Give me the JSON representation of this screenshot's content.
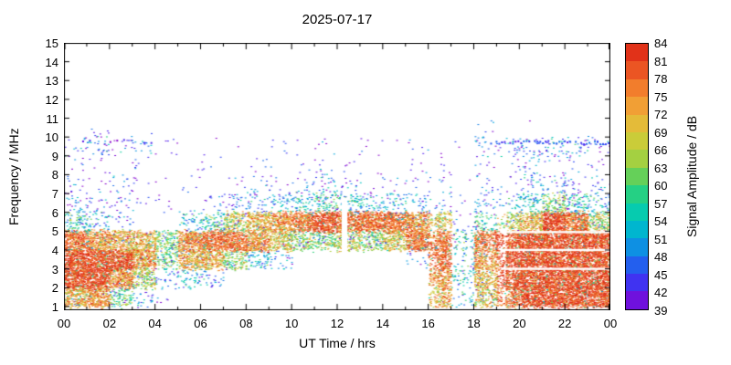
{
  "chart_data": {
    "type": "heatmap",
    "title": "2025-07-17",
    "xlabel": "UT Time / hrs",
    "ylabel": "Frequency / MHz",
    "colorbar_label": "Signal Amplitude / dB",
    "x_range_hours": [
      0,
      24
    ],
    "y_range_mhz": [
      0.8,
      15
    ],
    "color_range_db": [
      39,
      84
    ],
    "x_minor_step": 1,
    "x_tick_hours": [
      0,
      2,
      4,
      6,
      8,
      10,
      12,
      14,
      16,
      18,
      20,
      22,
      24
    ],
    "x_tick_labels": [
      "00",
      "02",
      "04",
      "06",
      "08",
      "10",
      "12",
      "14",
      "16",
      "18",
      "20",
      "22",
      "00"
    ],
    "y_ticks": [
      1,
      2,
      3,
      4,
      5,
      6,
      7,
      8,
      9,
      10,
      11,
      12,
      13,
      14,
      15
    ],
    "colorbar_ticks": [
      39,
      42,
      45,
      48,
      51,
      54,
      57,
      60,
      63,
      66,
      69,
      72,
      75,
      78,
      81,
      84
    ],
    "palette_stops": [
      [
        39,
        "#8800cc"
      ],
      [
        42,
        "#5522ee"
      ],
      [
        45,
        "#2a44f4"
      ],
      [
        48,
        "#1b7ae8"
      ],
      [
        51,
        "#00a6dd"
      ],
      [
        54,
        "#00c6c0"
      ],
      [
        57,
        "#0ccf9e"
      ],
      [
        60,
        "#3ed06a"
      ],
      [
        63,
        "#8ccf48"
      ],
      [
        66,
        "#bcd03a"
      ],
      [
        69,
        "#d8c838"
      ],
      [
        72,
        "#efae3a"
      ],
      [
        75,
        "#f39030"
      ],
      [
        78,
        "#f06a28"
      ],
      [
        81,
        "#e6401e"
      ],
      [
        84,
        "#dc2414"
      ]
    ],
    "grid": {
      "hour_step": 1,
      "freq_step_mhz": 1,
      "freq_start_mhz": 1,
      "rows_low_to_high": [
        [
          72,
          75,
          60,
          48,
          42,
          0,
          0,
          0,
          0,
          0,
          0,
          0,
          0,
          0,
          0,
          0,
          72,
          51,
          69,
          78,
          81,
          81,
          81,
          81
        ],
        [
          81,
          81,
          75,
          66,
          48,
          51,
          48,
          0,
          0,
          0,
          0,
          0,
          0,
          0,
          0,
          0,
          75,
          54,
          72,
          81,
          81,
          81,
          81,
          81
        ],
        [
          81,
          81,
          81,
          75,
          60,
          72,
          72,
          63,
          54,
          48,
          0,
          0,
          0,
          0,
          0,
          45,
          78,
          51,
          75,
          81,
          81,
          81,
          81,
          81
        ],
        [
          78,
          75,
          72,
          72,
          63,
          75,
          78,
          78,
          75,
          69,
          63,
          63,
          66,
          63,
          69,
          78,
          78,
          57,
          78,
          81,
          81,
          81,
          81,
          81
        ],
        [
          57,
          51,
          45,
          0,
          0,
          51,
          57,
          66,
          72,
          75,
          78,
          81,
          78,
          78,
          78,
          75,
          69,
          45,
          57,
          66,
          72,
          81,
          78,
          66
        ],
        [
          48,
          45,
          45,
          42,
          42,
          0,
          45,
          48,
          48,
          51,
          54,
          57,
          54,
          51,
          51,
          48,
          48,
          42,
          48,
          51,
          54,
          63,
          57,
          51
        ],
        [
          45,
          42,
          45,
          42,
          39,
          42,
          0,
          42,
          45,
          42,
          45,
          48,
          45,
          42,
          42,
          42,
          45,
          39,
          45,
          45,
          48,
          48,
          45,
          45
        ],
        [
          42,
          42,
          39,
          42,
          0,
          39,
          42,
          0,
          42,
          39,
          42,
          42,
          42,
          39,
          0,
          42,
          42,
          0,
          42,
          42,
          45,
          42,
          42,
          42
        ],
        [
          45,
          48,
          45,
          45,
          42,
          0,
          39,
          39,
          0,
          42,
          39,
          42,
          39,
          42,
          39,
          42,
          39,
          42,
          48,
          48,
          48,
          48,
          48,
          45
        ],
        [
          0,
          42,
          0,
          39,
          0,
          0,
          0,
          0,
          0,
          0,
          0,
          0,
          0,
          0,
          0,
          0,
          0,
          0,
          42,
          0,
          39,
          0,
          0,
          0
        ],
        [
          0,
          0,
          0,
          0,
          0,
          0,
          0,
          0,
          0,
          0,
          0,
          0,
          0,
          0,
          0,
          0,
          0,
          0,
          0,
          0,
          0,
          0,
          0,
          0
        ],
        [
          0,
          0,
          0,
          0,
          0,
          0,
          0,
          0,
          0,
          0,
          0,
          0,
          0,
          0,
          0,
          0,
          0,
          0,
          0,
          0,
          0,
          0,
          0,
          0
        ],
        [
          0,
          0,
          0,
          0,
          0,
          0,
          0,
          0,
          0,
          0,
          0,
          0,
          0,
          0,
          0,
          0,
          0,
          0,
          0,
          0,
          0,
          0,
          0,
          0
        ],
        [
          0,
          0,
          0,
          0,
          0,
          0,
          0,
          0,
          0,
          0,
          0,
          0,
          0,
          0,
          0,
          0,
          0,
          0,
          0,
          0,
          0,
          0,
          0,
          0
        ],
        [
          0,
          0,
          0,
          0,
          0,
          0,
          0,
          0,
          0,
          0,
          0,
          0,
          0,
          0,
          0,
          0,
          0,
          0,
          0,
          0,
          0,
          0,
          0,
          0
        ]
      ]
    },
    "features": {
      "vertical_streak_hours": [
        16,
        20
      ],
      "band_gap": {
        "hours": [
          12.2,
          12.45
        ],
        "freqs": [
          3.6,
          6.6
        ]
      },
      "white_lines": {
        "hours": [
          19.2,
          23.95
        ],
        "freqs": [
          3.0,
          4.0,
          4.95
        ]
      },
      "dotted_lines": [
        {
          "hours": [
            18.6,
            23.95
          ],
          "freq": 9.75,
          "db": 45,
          "spacing_hours": 0.12
        },
        {
          "hours": [
            0.8,
            4.2
          ],
          "freq": 9.8,
          "db": 41,
          "spacing_hours": 0.3
        }
      ]
    }
  }
}
